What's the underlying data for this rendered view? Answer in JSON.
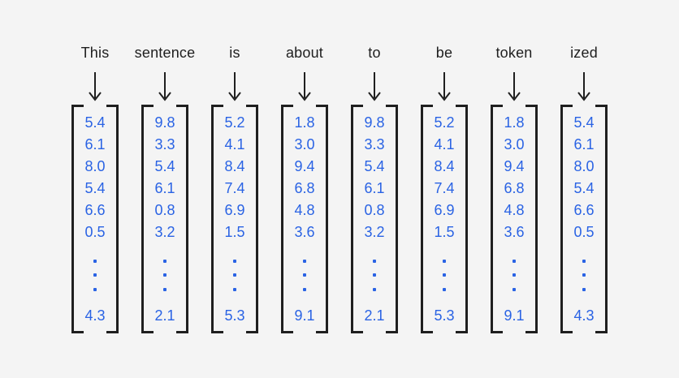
{
  "figure": {
    "sentence_tokens_label": "This sentence is about to be token ized"
  },
  "tokens": [
    {
      "word": "This",
      "values": [
        "5.4",
        "6.1",
        "8.0",
        "5.4",
        "6.6",
        "0.5"
      ],
      "last_value": "4.3"
    },
    {
      "word": "sentence",
      "values": [
        "9.8",
        "3.3",
        "5.4",
        "6.1",
        "0.8",
        "3.2"
      ],
      "last_value": "2.1"
    },
    {
      "word": "is",
      "values": [
        "5.2",
        "4.1",
        "8.4",
        "7.4",
        "6.9",
        "1.5"
      ],
      "last_value": "5.3"
    },
    {
      "word": "about",
      "values": [
        "1.8",
        "3.0",
        "9.4",
        "6.8",
        "4.8",
        "3.6"
      ],
      "last_value": "9.1"
    },
    {
      "word": "to",
      "values": [
        "9.8",
        "3.3",
        "5.4",
        "6.1",
        "0.8",
        "3.2"
      ],
      "last_value": "2.1"
    },
    {
      "word": "be",
      "values": [
        "5.2",
        "4.1",
        "8.4",
        "7.4",
        "6.9",
        "1.5"
      ],
      "last_value": "5.3"
    },
    {
      "word": "token",
      "values": [
        "1.8",
        "3.0",
        "9.4",
        "6.8",
        "4.8",
        "3.6"
      ],
      "last_value": "9.1"
    },
    {
      "word": "ized",
      "values": [
        "5.4",
        "6.1",
        "8.0",
        "5.4",
        "6.6",
        "0.5"
      ],
      "last_value": "4.3"
    }
  ],
  "colors": {
    "background": "#f4f4f4",
    "text": "#1f1f1f",
    "value_blue": "#2a63e4"
  }
}
